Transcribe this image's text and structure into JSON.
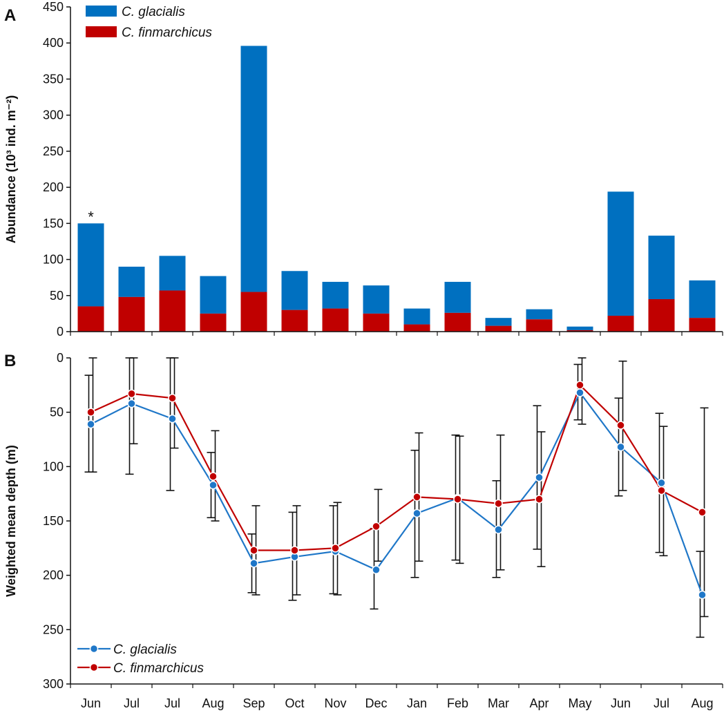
{
  "chart_data": [
    {
      "panel": "A",
      "type": "bar",
      "stacked": true,
      "categories": [
        "Jun",
        "Jul",
        "Jul",
        "Aug",
        "Sep",
        "Oct",
        "Nov",
        "Dec",
        "Jan",
        "Feb",
        "Mar",
        "Apr",
        "May",
        "Jun",
        "Jul",
        "Aug"
      ],
      "series": [
        {
          "name": "C. glacialis",
          "color": "#0070c0",
          "totals": [
            150,
            90,
            105,
            77,
            396,
            84,
            69,
            64,
            32,
            69,
            19,
            31,
            7,
            194,
            133,
            71
          ]
        },
        {
          "name": "C. finmarchicus",
          "color": "#c00000",
          "values": [
            35,
            48,
            57,
            25,
            55,
            30,
            32,
            25,
            10,
            26,
            8,
            17,
            2,
            22,
            45,
            19
          ]
        }
      ],
      "ylabel": "Abundance (10³ ind. m⁻²)",
      "ylim": [
        0,
        450
      ],
      "yticks": [
        0,
        50,
        100,
        150,
        200,
        250,
        300,
        350,
        400,
        450
      ],
      "annotation": {
        "category_index": 0,
        "text": "*"
      },
      "legend": "top-left"
    },
    {
      "panel": "B",
      "type": "line",
      "y_inverted": true,
      "categories": [
        "Jun",
        "Jul",
        "Jul",
        "Aug",
        "Sep",
        "Oct",
        "Nov",
        "Dec",
        "Jan",
        "Feb",
        "Mar",
        "Apr",
        "May",
        "Jun",
        "Jul",
        "Aug"
      ],
      "series": [
        {
          "name": "C. glacialis",
          "color": "#1f77c8",
          "values": [
            61,
            42,
            56,
            117,
            189,
            183,
            178,
            195,
            143,
            129,
            158,
            110,
            32,
            82,
            115,
            218
          ],
          "err_low": [
            16,
            0,
            0,
            87,
            162,
            142,
            136,
            157,
            85,
            71,
            113,
            44,
            6,
            37,
            51,
            178
          ],
          "err_high": [
            105,
            107,
            122,
            147,
            216,
            223,
            217,
            231,
            202,
            186,
            202,
            176,
            57,
            127,
            179,
            257
          ]
        },
        {
          "name": "C. finmarchicus",
          "color": "#c00000",
          "values": [
            50,
            33,
            37,
            109,
            177,
            177,
            175,
            155,
            128,
            130,
            134,
            130,
            25,
            62,
            122,
            142
          ],
          "err_low": [
            0,
            0,
            0,
            67,
            136,
            136,
            133,
            121,
            69,
            72,
            71,
            68,
            0,
            3,
            63,
            46
          ],
          "err_high": [
            105,
            79,
            83,
            150,
            218,
            218,
            218,
            187,
            187,
            189,
            195,
            192,
            61,
            122,
            182,
            238
          ]
        }
      ],
      "ylabel": "Weighted mean depth (m)",
      "ylim": [
        0,
        300
      ],
      "yticks": [
        0,
        50,
        100,
        150,
        200,
        250,
        300
      ],
      "legend": "bottom-left"
    }
  ]
}
